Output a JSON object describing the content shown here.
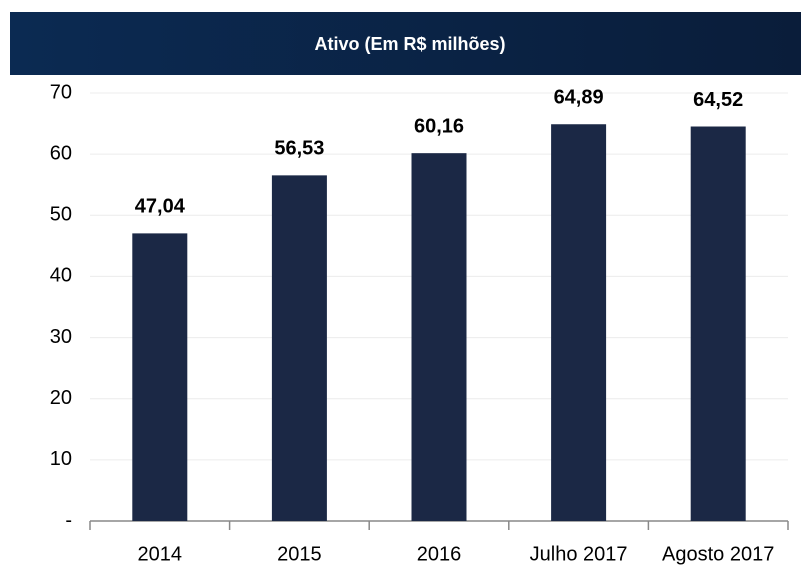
{
  "chart_data": {
    "type": "bar",
    "title": "Ativo (Em R$ milhões)",
    "categories": [
      "2014",
      "2015",
      "2016",
      "Julho 2017",
      "Agosto 2017"
    ],
    "values": [
      47.04,
      56.53,
      60.16,
      64.89,
      64.52
    ],
    "value_labels": [
      "47,04",
      "56,53",
      "60,16",
      "64,89",
      "64,52"
    ],
    "color": "#1b2845",
    "ylim": [
      0,
      70
    ],
    "yticks": [
      {
        "value": 0,
        "label": "-"
      },
      10,
      20,
      30,
      40,
      50,
      60,
      70
    ],
    "grid": true
  }
}
